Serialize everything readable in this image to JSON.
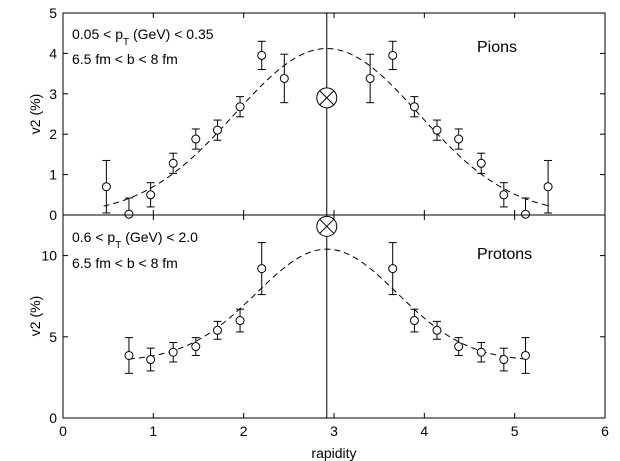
{
  "chart_data": [
    {
      "type": "scatter",
      "panel": "top",
      "label": "Pions",
      "annotations": [
        "0.05 < p",
        "T",
        " (GeV) < 0.35",
        "6.5 fm < b < 8 fm"
      ],
      "ylabel": "v2 (%)",
      "xlabel": "",
      "xlim": [
        0,
        6
      ],
      "ylim": [
        0,
        5
      ],
      "xticks": [
        0,
        1,
        2,
        3,
        4,
        5,
        6
      ],
      "yticks": [
        0,
        1,
        2,
        3,
        4,
        5
      ],
      "ytick_labels": [
        "0",
        "1",
        "2",
        "3",
        "4",
        "5"
      ],
      "grid": false,
      "vertical_line_x": 2.92,
      "marker_symbol": {
        "x": 2.92,
        "y": 2.9
      },
      "series": [
        {
          "x": [
            0.48,
            0.73,
            0.97,
            1.22,
            1.47,
            1.71,
            1.96,
            2.2,
            2.45,
            3.4,
            3.65,
            3.89,
            4.14,
            4.38,
            4.63,
            4.88,
            5.12,
            5.37
          ],
          "y": [
            0.7,
            0.02,
            0.5,
            1.28,
            1.88,
            2.1,
            2.68,
            3.95,
            3.38,
            3.38,
            3.95,
            2.68,
            2.1,
            1.88,
            1.28,
            0.5,
            0.02,
            0.7
          ],
          "err": [
            0.65,
            0.4,
            0.3,
            0.25,
            0.25,
            0.25,
            0.25,
            0.35,
            0.6,
            0.6,
            0.35,
            0.25,
            0.25,
            0.25,
            0.25,
            0.3,
            0.4,
            0.65
          ]
        }
      ],
      "fit": {
        "center": 2.92,
        "amplitude": 4.12,
        "sigma": 1.02,
        "offset": 0.0,
        "x_range": [
          0.45,
          5.4
        ]
      }
    },
    {
      "type": "scatter",
      "panel": "bottom",
      "label": "Protons",
      "annotations": [
        "0.6 < p",
        "T",
        " (GeV) < 2.0",
        "6.5 fm < b < 8 fm"
      ],
      "ylabel": "v2 (%)",
      "xlabel": "rapidity",
      "xlim": [
        0,
        6
      ],
      "ylim": [
        0,
        12.5
      ],
      "xticks": [
        0,
        1,
        2,
        3,
        4,
        5,
        6
      ],
      "xtick_labels": [
        "0",
        "1",
        "2",
        "3",
        "4",
        "5",
        "6"
      ],
      "yticks": [
        0,
        5,
        10
      ],
      "ytick_labels": [
        "0",
        "5",
        "10"
      ],
      "grid": false,
      "vertical_line_x": 2.92,
      "marker_symbol": {
        "x": 2.92,
        "y": 11.8
      },
      "series": [
        {
          "x": [
            0.73,
            0.97,
            1.22,
            1.47,
            1.71,
            1.96,
            2.2,
            3.65,
            3.89,
            4.14,
            4.38,
            4.63,
            4.88,
            5.12
          ],
          "y": [
            3.85,
            3.6,
            4.05,
            4.4,
            5.4,
            6.0,
            9.2,
            9.2,
            6.0,
            5.4,
            4.4,
            4.05,
            3.6,
            3.85
          ],
          "err": [
            1.1,
            0.7,
            0.6,
            0.55,
            0.55,
            0.7,
            1.6,
            1.6,
            0.7,
            0.55,
            0.55,
            0.6,
            0.7,
            1.1
          ]
        }
      ],
      "fit": {
        "center": 2.92,
        "amplitude": 6.9,
        "sigma": 0.78,
        "offset": 3.5,
        "x_range": [
          0.73,
          5.12
        ]
      }
    }
  ]
}
